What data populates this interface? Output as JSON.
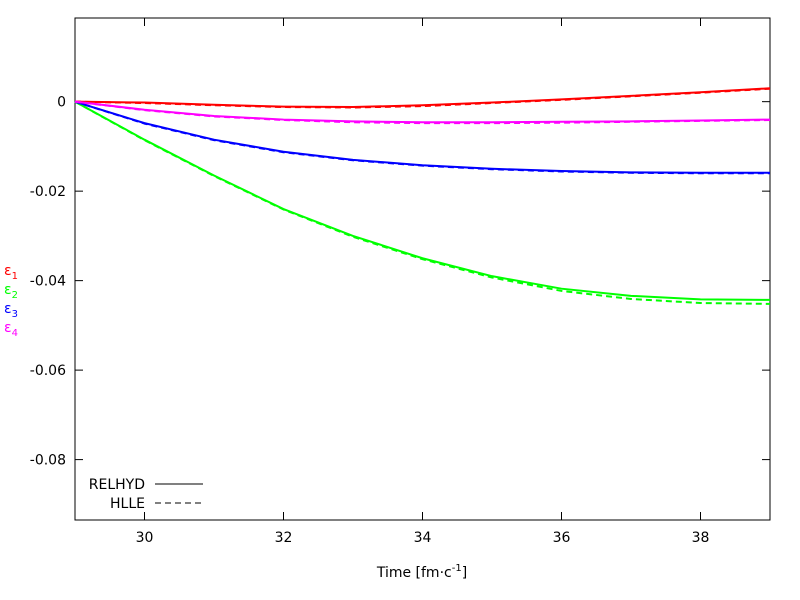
{
  "chart_data": {
    "type": "line",
    "xlabel": {
      "main": "Time [fm·c",
      "sup": "-1",
      "close": "]"
    },
    "ylabel_entries": [
      {
        "symbol": "ε",
        "sub": "1",
        "color": "#ff0000"
      },
      {
        "symbol": "ε",
        "sub": "2",
        "color": "#00ff00"
      },
      {
        "symbol": "ε",
        "sub": "3",
        "color": "#0000ff"
      },
      {
        "symbol": "ε",
        "sub": "4",
        "color": "#ff00ff"
      }
    ],
    "xlim": [
      29,
      39
    ],
    "ylim": [
      -0.0935,
      0.0187
    ],
    "x_ticks": [
      30,
      32,
      34,
      36,
      38
    ],
    "x_tick_labels": [
      "30",
      "32",
      "34",
      "36",
      "38"
    ],
    "y_ticks": [
      0,
      -0.02,
      -0.04,
      -0.06,
      -0.08
    ],
    "y_tick_labels": [
      "0",
      "-0.02",
      "-0.04",
      "-0.06",
      "-0.08"
    ],
    "grid": false,
    "legend": {
      "position": "bottom-left",
      "entries": [
        {
          "label": "RELHYD",
          "style": "solid"
        },
        {
          "label": "HLLE",
          "style": "dashed"
        }
      ]
    },
    "x": [
      29,
      30,
      31,
      32,
      33,
      34,
      35,
      36,
      37,
      38,
      39
    ],
    "series": [
      {
        "color": "#ff0000",
        "solver": "RELHYD",
        "values": [
          0,
          -0.0002,
          -0.0007,
          -0.0011,
          -0.0012,
          -0.0008,
          -0.0002,
          0.0005,
          0.0013,
          0.0021,
          0.003
        ]
      },
      {
        "color": "#ff0000",
        "solver": "HLLE",
        "values": [
          0,
          -0.0003,
          -0.0008,
          -0.0012,
          -0.0013,
          -0.001,
          -0.0003,
          0.0004,
          0.0012,
          0.002,
          0.0029
        ]
      },
      {
        "color": "#00ff00",
        "solver": "RELHYD",
        "values": [
          0,
          -0.0085,
          -0.0165,
          -0.024,
          -0.03,
          -0.035,
          -0.039,
          -0.0418,
          -0.0434,
          -0.0442,
          -0.0443
        ]
      },
      {
        "color": "#00ff00",
        "solver": "HLLE",
        "values": [
          0,
          -0.0086,
          -0.0166,
          -0.0241,
          -0.0302,
          -0.0352,
          -0.0393,
          -0.0423,
          -0.0441,
          -0.045,
          -0.0452
        ]
      },
      {
        "color": "#0000ff",
        "solver": "RELHYD",
        "values": [
          0,
          -0.0048,
          -0.0085,
          -0.0112,
          -0.013,
          -0.0142,
          -0.015,
          -0.0155,
          -0.0158,
          -0.0159,
          -0.0159
        ]
      },
      {
        "color": "#0000ff",
        "solver": "HLLE",
        "values": [
          0,
          -0.0049,
          -0.0086,
          -0.0113,
          -0.0131,
          -0.0143,
          -0.0151,
          -0.0156,
          -0.0159,
          -0.016,
          -0.016
        ]
      },
      {
        "color": "#ff00ff",
        "solver": "RELHYD",
        "values": [
          0,
          -0.0018,
          -0.0032,
          -0.004,
          -0.0044,
          -0.0046,
          -0.0046,
          -0.0045,
          -0.0044,
          -0.0042,
          -0.004
        ]
      },
      {
        "color": "#ff00ff",
        "solver": "HLLE",
        "values": [
          0,
          -0.0019,
          -0.0033,
          -0.0041,
          -0.0046,
          -0.0048,
          -0.0048,
          -0.0047,
          -0.0045,
          -0.0043,
          -0.0041
        ]
      }
    ]
  }
}
